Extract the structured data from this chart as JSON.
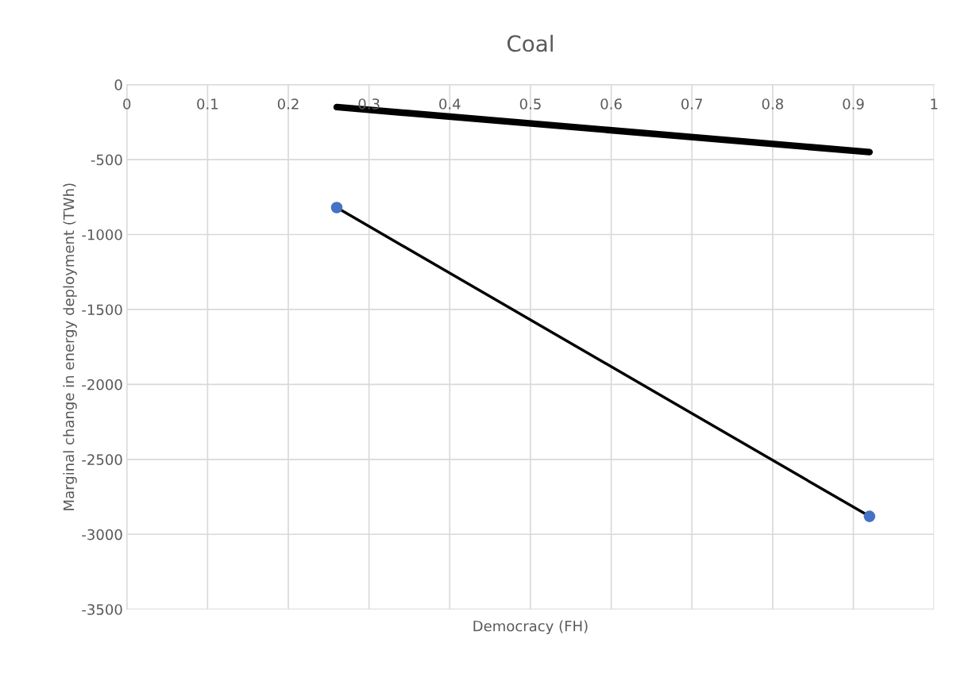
{
  "chart_data": {
    "type": "line",
    "title": "Coal",
    "xlabel": "Democracy (FH)",
    "ylabel": "Marginal change in energy deployment (TWh)",
    "series": [
      {
        "color": "#000000",
        "values": [
          -150,
          -450
        ]
      },
      {
        "color": "#000000",
        "values": [
          -820,
          -2880
        ]
      },
      {
        "type": "scatter",
        "color": "#4472c4",
        "values": [
          -820,
          -2880
        ],
        "marker": "circle"
      }
    ],
    "x": [
      0.26,
      0.92
    ],
    "xlim": [
      0,
      1
    ],
    "xticks": [
      0,
      0.1,
      0.2,
      0.3,
      0.4,
      0.5,
      0.6,
      0.7,
      0.8,
      0.9,
      1
    ],
    "ylim": [
      -3500,
      0
    ],
    "yticks": [
      -3500,
      -3000,
      -2500,
      -2000,
      -1500,
      -1000,
      -500,
      0
    ],
    "grid": true,
    "legend": false
  }
}
